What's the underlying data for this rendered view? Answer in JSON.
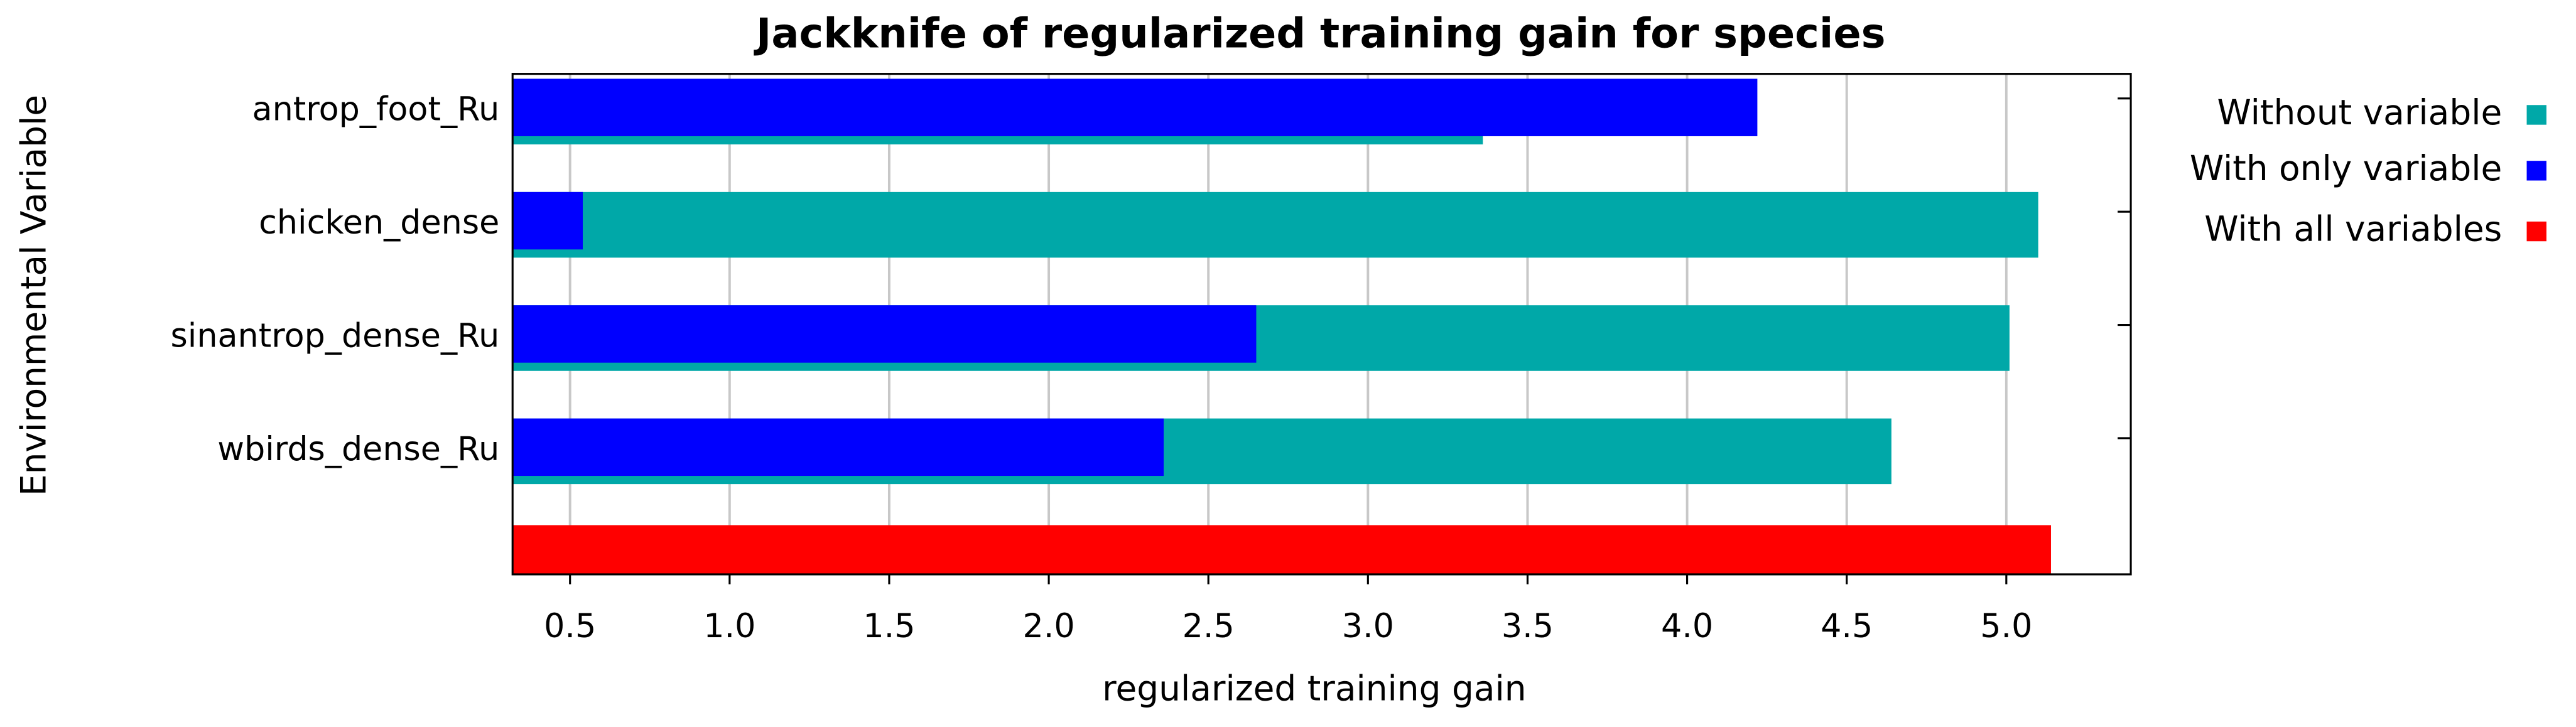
{
  "chart_data": {
    "type": "barh",
    "title": "Jackknife of regularized training gain for species",
    "xlabel": "regularized training gain",
    "ylabel": "Environmental Variable",
    "categories": [
      "antrop_foot_Ru",
      "chicken_dense",
      "sinantrop_dense_Ru",
      "wbirds_dense_Ru",
      null
    ],
    "series": [
      {
        "name": "Without variable",
        "color": "#00a8a8",
        "values": [
          3.36,
          5.1,
          5.01,
          4.64,
          null
        ]
      },
      {
        "name": "With only variable",
        "color": "#0000ff",
        "values": [
          4.22,
          0.54,
          2.65,
          2.36,
          null
        ]
      },
      {
        "name": "With all variables",
        "color": "#ff0000",
        "values": [
          null,
          null,
          null,
          null,
          5.14
        ]
      }
    ],
    "xlim": [
      0.32,
      5.39
    ],
    "xticks": [
      0.5,
      {
        "value": 1,
        "label": "1.0"
      },
      1.5,
      {
        "value": 2,
        "label": "2.0"
      },
      2.5,
      {
        "value": 3,
        "label": "3.0"
      },
      3.5,
      {
        "value": 4,
        "label": "4.0"
      },
      4.5,
      {
        "value": 5,
        "label": "5.0"
      }
    ],
    "grid": true,
    "legend": "right"
  }
}
